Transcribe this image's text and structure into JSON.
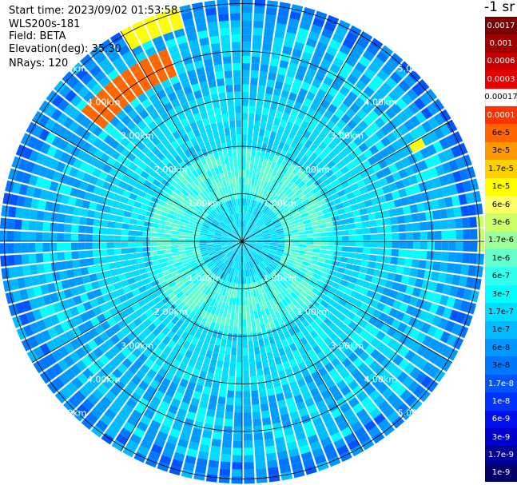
{
  "scan_info": {
    "start_time": "Start time: 2023/09/02 01:53:58",
    "device": "WLS200s-181",
    "field": "Field: BETA",
    "elevation": "Elevation(deg): 35.30",
    "nrays": "NRays: 120"
  },
  "colorbar": {
    "title": "-1 sr",
    "labels": [
      "0.0017",
      "0.001",
      "0.0006",
      "0.0003",
      "0.00017",
      "0.0001",
      "6e-5",
      "3e-5",
      "1.7e-5",
      "1e-5",
      "6e-6",
      "3e-6",
      "1.7e-6",
      "1e-6",
      "6e-7",
      "3e-7",
      "1.7e-7",
      "1e-7",
      "6e-8",
      "3e-8",
      "1.7e-8",
      "1e-8",
      "6e-9",
      "3e-9",
      "1.7e-9",
      "1e-9"
    ],
    "colors": [
      "#7a0000",
      "#a00000",
      "#c80000",
      "#e60000",
      "#ffffff",
      "#ff3300",
      "#ff6600",
      "#ff9900",
      "#ffd000",
      "#ffff00",
      "#ffff66",
      "#ccff66",
      "#99ff99",
      "#66ffcc",
      "#33ffee",
      "#00ffff",
      "#00ddff",
      "#00bbff",
      "#0099ff",
      "#0077ff",
      "#0055ff",
      "#0033ff",
      "#0011ee",
      "#0000cc",
      "#000099",
      "#000066"
    ],
    "text_colors": [
      "#ffffff",
      "#ffffff",
      "#ffffff",
      "#ffffff",
      "#000000",
      "#ffffff",
      "#000000",
      "#000000",
      "#000000",
      "#000000",
      "#000000",
      "#000000",
      "#000000",
      "#000000",
      "#000000",
      "#000000",
      "#000000",
      "#000000",
      "#000000",
      "#000000",
      "#ffffff",
      "#ffffff",
      "#ffffff",
      "#ffffff",
      "#ffffff",
      "#ffffff"
    ]
  },
  "chart_data": {
    "type": "heatmap",
    "projection": "polar PPI",
    "field": "BETA",
    "units": "-1 sr",
    "nrays": 120,
    "range_rings_km": [
      1,
      2,
      3,
      4,
      5
    ],
    "range_labels": [
      "1.00km",
      "2.00km",
      "3.00km",
      "4.00km",
      "5.00km"
    ],
    "radial_lines_deg": [
      0,
      30,
      60,
      90,
      120,
      150,
      180,
      210,
      240,
      270,
      300,
      330
    ],
    "range_zones": [
      {
        "from_km": 0.0,
        "to_km": 0.9,
        "typical": "1.7e-7"
      },
      {
        "from_km": 0.9,
        "to_km": 1.9,
        "typical": "1e-6"
      },
      {
        "from_km": 1.9,
        "to_km": 3.2,
        "typical": "1.7e-7"
      },
      {
        "from_km": 3.2,
        "to_km": 4.6,
        "typical": "1e-7"
      },
      {
        "from_km": 4.6,
        "to_km": 5.2,
        "typical": "3e-8"
      }
    ],
    "hotspots": [
      {
        "azimuth_from_deg": 310,
        "azimuth_to_deg": 340,
        "range_from_km": 3.7,
        "range_to_km": 4.4,
        "value": "6e-5"
      },
      {
        "azimuth_from_deg": 330,
        "azimuth_to_deg": 345,
        "range_from_km": 4.6,
        "range_to_km": 5.1,
        "value": "1e-5"
      },
      {
        "azimuth_from_deg": 85,
        "azimuth_to_deg": 92,
        "range_from_km": 4.9,
        "range_to_km": 5.1,
        "value": "3e-6"
      },
      {
        "azimuth_from_deg": 60,
        "azimuth_to_deg": 64,
        "range_from_km": 4.0,
        "range_to_km": 4.3,
        "value": "1e-5"
      }
    ]
  }
}
